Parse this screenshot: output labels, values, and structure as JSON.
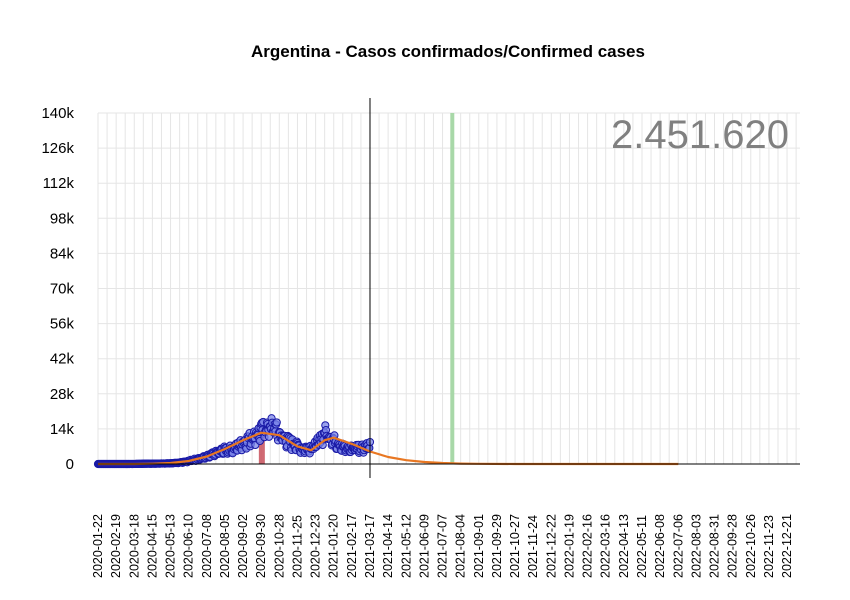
{
  "chart_data": {
    "type": "scatter",
    "title": "Argentina - Casos confirmados/Confirmed cases",
    "xlabel": "",
    "ylabel": "",
    "total_label": "2.451.620",
    "ylim": [
      0,
      140000
    ],
    "y_ticks": [
      0,
      14000,
      28000,
      42000,
      56000,
      70000,
      84000,
      98000,
      112000,
      126000,
      140000
    ],
    "y_tick_labels": [
      "0",
      "14k",
      "28k",
      "42k",
      "56k",
      "70k",
      "84k",
      "98k",
      "112k",
      "126k",
      "140k"
    ],
    "x_range": [
      "2020-01-22",
      "2023-01-10"
    ],
    "x_ticks": [
      "2020-01-22",
      "2020-02-19",
      "2020-03-18",
      "2020-04-15",
      "2020-05-13",
      "2020-06-10",
      "2020-07-08",
      "2020-08-05",
      "2020-09-02",
      "2020-09-30",
      "2020-10-28",
      "2020-11-25",
      "2020-12-23",
      "2021-01-20",
      "2021-02-17",
      "2021-03-17",
      "2021-04-14",
      "2021-05-12",
      "2021-06-09",
      "2021-07-07",
      "2021-08-04",
      "2021-09-01",
      "2021-09-29",
      "2021-10-27",
      "2021-11-24",
      "2021-12-22",
      "2022-01-19",
      "2022-02-16",
      "2022-03-16",
      "2022-04-13",
      "2022-05-11",
      "2022-06-08",
      "2022-07-06",
      "2022-08-03",
      "2022-08-31",
      "2022-09-28",
      "2022-10-26",
      "2022-11-23",
      "2022-12-21"
    ],
    "today_line": "2021-03-17",
    "highlight_band": [
      "2021-07-19",
      "2021-07-21"
    ],
    "highlight_bar": {
      "date": "2020-10-01",
      "value": 12000
    },
    "series": [
      {
        "kind": "daily_cases",
        "points": [
          [
            "2020-01-22",
            0
          ],
          [
            "2020-02-19",
            0
          ],
          [
            "2020-03-18",
            20
          ],
          [
            "2020-04-01",
            100
          ],
          [
            "2020-04-15",
            140
          ],
          [
            "2020-05-01",
            200
          ],
          [
            "2020-05-13",
            300
          ],
          [
            "2020-05-27",
            600
          ],
          [
            "2020-06-10",
            1200
          ],
          [
            "2020-06-24",
            2200
          ],
          [
            "2020-07-08",
            3000
          ],
          [
            "2020-07-22",
            4500
          ],
          [
            "2020-08-05",
            6000
          ],
          [
            "2020-08-19",
            6500
          ],
          [
            "2020-09-02",
            9000
          ],
          [
            "2020-09-16",
            11500
          ],
          [
            "2020-09-23",
            12500
          ],
          [
            "2020-09-30",
            14000
          ],
          [
            "2020-10-07",
            15000
          ],
          [
            "2020-10-14",
            16000
          ],
          [
            "2020-10-21",
            15500
          ],
          [
            "2020-10-28",
            12500
          ],
          [
            "2020-11-04",
            11000
          ],
          [
            "2020-11-11",
            9500
          ],
          [
            "2020-11-18",
            8500
          ],
          [
            "2020-11-25",
            7500
          ],
          [
            "2020-12-02",
            6500
          ],
          [
            "2020-12-09",
            6500
          ],
          [
            "2020-12-16",
            7000
          ],
          [
            "2020-12-23",
            8000
          ],
          [
            "2020-12-30",
            10000
          ],
          [
            "2021-01-06",
            13500
          ],
          [
            "2021-01-13",
            12000
          ],
          [
            "2021-01-20",
            10000
          ],
          [
            "2021-01-27",
            9000
          ],
          [
            "2021-02-03",
            7000
          ],
          [
            "2021-02-10",
            6500
          ],
          [
            "2021-02-17",
            6500
          ],
          [
            "2021-02-24",
            7000
          ],
          [
            "2021-03-03",
            7000
          ],
          [
            "2021-03-10",
            7500
          ],
          [
            "2021-03-17",
            7500
          ]
        ]
      },
      {
        "kind": "trend",
        "points": [
          [
            "2020-01-22",
            0
          ],
          [
            "2020-03-18",
            0
          ],
          [
            "2020-04-15",
            100
          ],
          [
            "2020-05-13",
            400
          ],
          [
            "2020-06-10",
            1200
          ],
          [
            "2020-07-08",
            3000
          ],
          [
            "2020-08-05",
            6000
          ],
          [
            "2020-09-02",
            9500
          ],
          [
            "2020-09-30",
            12500
          ],
          [
            "2020-10-28",
            11500
          ],
          [
            "2020-11-25",
            7000
          ],
          [
            "2020-12-16",
            5500
          ],
          [
            "2021-01-06",
            9500
          ],
          [
            "2021-01-20",
            10500
          ],
          [
            "2021-02-17",
            8000
          ],
          [
            "2021-03-17",
            5000
          ],
          [
            "2021-04-14",
            2800
          ],
          [
            "2021-05-12",
            1500
          ],
          [
            "2021-06-09",
            800
          ],
          [
            "2021-07-07",
            400
          ],
          [
            "2021-08-04",
            150
          ],
          [
            "2021-09-01",
            60
          ],
          [
            "2021-10-27",
            10
          ],
          [
            "2022-01-19",
            0
          ],
          [
            "2022-07-06",
            0
          ]
        ]
      }
    ],
    "grid": true
  },
  "colors": {
    "points_fill": "#7b86e8",
    "points_stroke": "#1a1aa6",
    "trend": "#e87722",
    "band": "#a8d8a8",
    "bar": "#c8505a",
    "grid": "#e5e5e5",
    "total_label": "#808080"
  }
}
